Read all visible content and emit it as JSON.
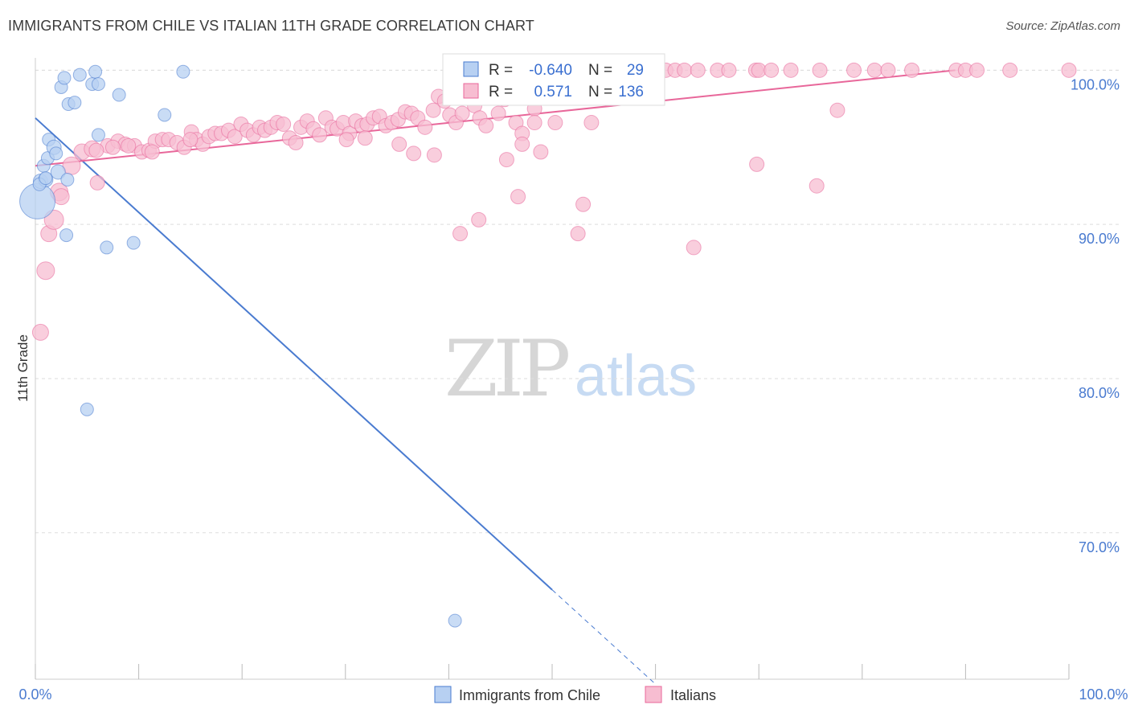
{
  "header": {
    "title": "IMMIGRANTS FROM CHILE VS ITALIAN 11TH GRADE CORRELATION CHART",
    "source": "Source: ZipAtlas.com"
  },
  "watermark": {
    "zip": "ZIP",
    "atlas": "atlas"
  },
  "colors": {
    "blue": "#4a7bd0",
    "blue_fill": "#b7d0f2",
    "pink": "#e8679a",
    "pink_fill": "#f7bdd1",
    "grid": "#dddddd"
  },
  "chart_data": {
    "type": "scatter",
    "title": "IMMIGRANTS FROM CHILE VS ITALIAN 11TH GRADE CORRELATION CHART",
    "xlabel": "",
    "ylabel": "11th Grade",
    "xlim": [
      0,
      100
    ],
    "ylim": [
      60.5,
      100.8
    ],
    "x_tick_labels": [
      "0.0%",
      "100.0%"
    ],
    "y_ticks": [
      70,
      80,
      90,
      100
    ],
    "y_tick_labels": [
      "70.0%",
      "80.0%",
      "90.0%",
      "100.0%"
    ],
    "grid": true,
    "stats": [
      {
        "r_label": "R =",
        "r": "-0.640",
        "n_label": "N =",
        "n": "29"
      },
      {
        "r_label": "R =",
        "r": "0.571",
        "n_label": "N =",
        "n": "136"
      }
    ],
    "series": [
      {
        "name": "Immigrants from Chile",
        "color": "#4a7bd0",
        "fill": "#b7d0f2",
        "trend": {
          "x0": 0,
          "y0": 96.9,
          "x1": 50,
          "y1": 66.3,
          "dash_to_x": 60
        },
        "points": [
          [
            0.2,
            91.5,
            22
          ],
          [
            0.5,
            92.8,
            9
          ],
          [
            1.0,
            92.9,
            9
          ],
          [
            0.8,
            93.8,
            8
          ],
          [
            1.2,
            94.3,
            8
          ],
          [
            1.3,
            95.5,
            8
          ],
          [
            1.8,
            95.0,
            9
          ],
          [
            2.0,
            94.6,
            8
          ],
          [
            2.2,
            93.4,
            9
          ],
          [
            2.5,
            98.9,
            8
          ],
          [
            2.8,
            99.5,
            8
          ],
          [
            3.2,
            97.8,
            8
          ],
          [
            3.8,
            97.9,
            8
          ],
          [
            4.3,
            99.7,
            8
          ],
          [
            5.5,
            99.1,
            8
          ],
          [
            5.8,
            99.9,
            8
          ],
          [
            6.1,
            99.1,
            8
          ],
          [
            6.1,
            95.8,
            8
          ],
          [
            8.1,
            98.4,
            8
          ],
          [
            12.5,
            97.1,
            8
          ],
          [
            14.3,
            99.9,
            8
          ],
          [
            3.0,
            89.3,
            8
          ],
          [
            6.9,
            88.5,
            8
          ],
          [
            9.5,
            88.8,
            8
          ],
          [
            5.0,
            78.0,
            8
          ],
          [
            40.6,
            64.3,
            8
          ],
          [
            0.4,
            92.6,
            8
          ],
          [
            3.1,
            92.9,
            8
          ],
          [
            1.0,
            93.0,
            8
          ]
        ]
      },
      {
        "name": "Italians",
        "color": "#e8679a",
        "fill": "#f7bdd1",
        "trend": {
          "x0": 0,
          "y0": 93.8,
          "x1": 89,
          "y1": 100.0
        },
        "points": [
          [
            0.5,
            83.0,
            10
          ],
          [
            1.0,
            87.0,
            11
          ],
          [
            1.3,
            89.4,
            10
          ],
          [
            1.8,
            90.3,
            12
          ],
          [
            2.3,
            92.1,
            11
          ],
          [
            2.5,
            91.8,
            10
          ],
          [
            3.5,
            93.8,
            11
          ],
          [
            4.5,
            94.7,
            10
          ],
          [
            5.5,
            94.9,
            10
          ],
          [
            6.0,
            92.7,
            9
          ],
          [
            7.0,
            95.1,
            9
          ],
          [
            8.0,
            95.4,
            9
          ],
          [
            8.7,
            95.2,
            9
          ],
          [
            9.6,
            95.1,
            9
          ],
          [
            10.3,
            94.7,
            9
          ],
          [
            11.0,
            94.8,
            9
          ],
          [
            11.6,
            95.4,
            9
          ],
          [
            12.3,
            95.5,
            9
          ],
          [
            12.9,
            95.5,
            9
          ],
          [
            13.7,
            95.3,
            9
          ],
          [
            14.4,
            95.0,
            9
          ],
          [
            15.1,
            96.0,
            9
          ],
          [
            15.6,
            95.5,
            9
          ],
          [
            16.2,
            95.2,
            9
          ],
          [
            16.8,
            95.7,
            9
          ],
          [
            17.4,
            95.9,
            9
          ],
          [
            18.0,
            95.9,
            9
          ],
          [
            18.7,
            96.1,
            9
          ],
          [
            19.3,
            95.7,
            9
          ],
          [
            19.9,
            96.5,
            9
          ],
          [
            20.5,
            96.1,
            9
          ],
          [
            21.1,
            95.8,
            9
          ],
          [
            21.7,
            96.3,
            9
          ],
          [
            22.2,
            96.1,
            9
          ],
          [
            22.8,
            96.3,
            9
          ],
          [
            23.4,
            96.6,
            9
          ],
          [
            24.0,
            96.5,
            9
          ],
          [
            24.6,
            95.6,
            9
          ],
          [
            25.2,
            95.3,
            9
          ],
          [
            25.7,
            96.3,
            9
          ],
          [
            26.3,
            96.7,
            9
          ],
          [
            26.9,
            96.2,
            9
          ],
          [
            27.5,
            95.8,
            9
          ],
          [
            28.1,
            96.9,
            9
          ],
          [
            28.7,
            96.3,
            9
          ],
          [
            29.2,
            96.2,
            9
          ],
          [
            29.8,
            96.6,
            9
          ],
          [
            30.4,
            95.9,
            9
          ],
          [
            31.0,
            96.7,
            9
          ],
          [
            31.6,
            96.4,
            9
          ],
          [
            32.1,
            96.5,
            9
          ],
          [
            32.7,
            96.9,
            9
          ],
          [
            33.3,
            97.0,
            9
          ],
          [
            33.9,
            96.4,
            9
          ],
          [
            34.5,
            96.6,
            9
          ],
          [
            35.1,
            96.8,
            9
          ],
          [
            35.8,
            97.3,
            9
          ],
          [
            36.4,
            97.2,
            9
          ],
          [
            37.0,
            96.9,
            9
          ],
          [
            37.7,
            96.3,
            9
          ],
          [
            38.5,
            97.4,
            9
          ],
          [
            39.0,
            98.3,
            9
          ],
          [
            39.6,
            98.0,
            9
          ],
          [
            40.1,
            97.1,
            9
          ],
          [
            40.7,
            96.6,
            9
          ],
          [
            41.3,
            97.2,
            9
          ],
          [
            41.9,
            98.6,
            9
          ],
          [
            42.5,
            97.7,
            9
          ],
          [
            43.0,
            96.9,
            9
          ],
          [
            43.6,
            96.4,
            9
          ],
          [
            44.2,
            98.4,
            9
          ],
          [
            44.8,
            97.2,
            9
          ],
          [
            45.4,
            98.1,
            9
          ],
          [
            46.0,
            100.0,
            9
          ],
          [
            46.5,
            96.6,
            9
          ],
          [
            47.1,
            95.9,
            9
          ],
          [
            47.7,
            98.8,
            9
          ],
          [
            48.3,
            97.5,
            9
          ],
          [
            48.9,
            100.0,
            9
          ],
          [
            49.5,
            100.0,
            9
          ],
          [
            50.3,
            96.6,
            9
          ],
          [
            51.2,
            100.0,
            9
          ],
          [
            52.1,
            100.0,
            9
          ],
          [
            53.0,
            100.0,
            9
          ],
          [
            53.9,
            100.0,
            9
          ],
          [
            54.8,
            100.0,
            9
          ],
          [
            55.7,
            100.0,
            9
          ],
          [
            56.6,
            100.0,
            9
          ],
          [
            57.5,
            100.0,
            9
          ],
          [
            58.4,
            100.0,
            9
          ],
          [
            59.3,
            100.0,
            9
          ],
          [
            60.1,
            100.0,
            9
          ],
          [
            61.0,
            100.0,
            9
          ],
          [
            61.9,
            100.0,
            9
          ],
          [
            62.8,
            100.0,
            9
          ],
          [
            64.1,
            100.0,
            9
          ],
          [
            66.0,
            100.0,
            9
          ],
          [
            67.1,
            100.0,
            9
          ],
          [
            69.7,
            100.0,
            9
          ],
          [
            70.0,
            100.0,
            9
          ],
          [
            71.2,
            100.0,
            9
          ],
          [
            73.1,
            100.0,
            9
          ],
          [
            75.9,
            100.0,
            9
          ],
          [
            79.2,
            100.0,
            9
          ],
          [
            81.2,
            100.0,
            9
          ],
          [
            82.5,
            100.0,
            9
          ],
          [
            84.8,
            100.0,
            9
          ],
          [
            89.1,
            100.0,
            9
          ],
          [
            90.0,
            100.0,
            9
          ],
          [
            91.1,
            100.0,
            9
          ],
          [
            94.3,
            100.0,
            9
          ],
          [
            100.0,
            100.0,
            9
          ],
          [
            30.1,
            95.5,
            9
          ],
          [
            31.9,
            95.6,
            9
          ],
          [
            35.2,
            95.2,
            9
          ],
          [
            36.6,
            94.6,
            9
          ],
          [
            38.6,
            94.5,
            9
          ],
          [
            45.6,
            94.2,
            9
          ],
          [
            46.7,
            91.8,
            9
          ],
          [
            48.9,
            94.7,
            9
          ],
          [
            53.0,
            91.3,
            9
          ],
          [
            41.1,
            89.4,
            9
          ],
          [
            42.9,
            90.3,
            9
          ],
          [
            52.5,
            89.4,
            9
          ],
          [
            63.7,
            88.5,
            9
          ],
          [
            69.8,
            93.9,
            9
          ],
          [
            75.6,
            92.5,
            9
          ],
          [
            77.6,
            97.4,
            9
          ],
          [
            48.3,
            96.6,
            9
          ],
          [
            53.8,
            96.6,
            9
          ],
          [
            47.1,
            95.2,
            9
          ],
          [
            15.0,
            95.5,
            9
          ],
          [
            9.0,
            95.1,
            9
          ],
          [
            7.5,
            95.0,
            9
          ],
          [
            11.3,
            94.7,
            9
          ],
          [
            5.9,
            94.8,
            9
          ]
        ]
      }
    ]
  },
  "legend": [
    {
      "label": "Immigrants from Chile",
      "color": "#4a7bd0",
      "fill": "#b7d0f2"
    },
    {
      "label": "Italians",
      "color": "#e8679a",
      "fill": "#f7bdd1"
    }
  ]
}
